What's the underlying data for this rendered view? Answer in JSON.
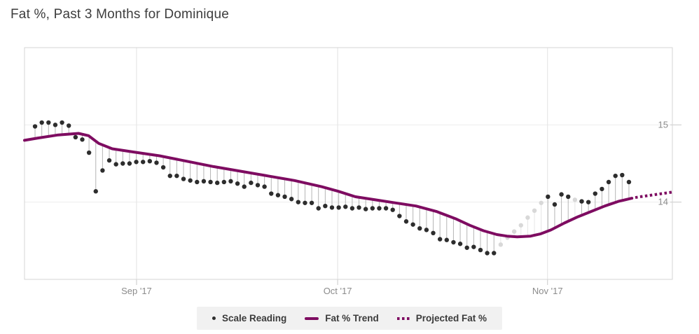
{
  "page": {
    "title": "Fat %, Past 3 Months for Dominique"
  },
  "legend": {
    "items": [
      {
        "label": "Scale Reading",
        "marker": "dot"
      },
      {
        "label": "Fat % Trend",
        "marker": "solid-line"
      },
      {
        "label": "Projected Fat %",
        "marker": "dotted-line"
      }
    ]
  },
  "colors": {
    "trend": "#7e0c61",
    "dot": "#2d2d2d",
    "stem": "#b5b5b5",
    "faded_dot": "#d8d8d8",
    "faded_stem": "#e6e6e6",
    "grid_v": "#e2e2e2",
    "grid_h": "#ededed",
    "border": "#d6d6d6",
    "tick": "#c9c9c9",
    "axis_label": "#8b8b8b",
    "title": "#3d3d3d",
    "legend_bg": "#f1f1f1",
    "legend_text": "#3b3b3b"
  },
  "chart_data": {
    "type": "line",
    "title": "Fat %, Past 3 Months for Dominique",
    "x_unit": "days",
    "x_domain": [
      0,
      96
    ],
    "y_domain": [
      13.0,
      16.0
    ],
    "grid": true,
    "legend_position": "bottom",
    "y_axis_side": "right",
    "y_ticks": [
      {
        "value": 15,
        "label": "15"
      },
      {
        "value": 14,
        "label": "14"
      }
    ],
    "x_ticks": [
      {
        "day": 16.6,
        "label": "Sep '17"
      },
      {
        "day": 46.4,
        "label": "Oct '17"
      },
      {
        "day": 77.5,
        "label": "Nov '17"
      }
    ],
    "series": {
      "scale_readings": {
        "name": "Scale Reading",
        "first_day": 1.56,
        "interval_days": 1,
        "values": [
          14.98,
          15.03,
          15.03,
          15.0,
          15.03,
          14.99,
          14.84,
          14.81,
          14.64,
          14.14,
          14.41,
          14.54,
          14.49,
          14.5,
          14.5,
          14.52,
          14.52,
          14.53,
          14.51,
          14.45,
          14.34,
          14.34,
          14.3,
          14.28,
          14.26,
          14.27,
          14.26,
          14.25,
          14.26,
          14.27,
          14.24,
          14.2,
          14.25,
          14.22,
          14.2,
          14.11,
          14.09,
          14.07,
          14.04,
          14.0,
          13.99,
          13.99,
          13.92,
          13.95,
          13.93,
          13.93,
          13.94,
          13.92,
          13.93,
          13.91,
          13.92,
          13.92,
          13.92,
          13.9,
          13.82,
          13.75,
          13.71,
          13.66,
          13.64,
          13.6,
          13.52,
          13.51,
          13.48,
          13.46,
          13.41,
          13.42,
          13.38,
          13.34,
          13.34,
          13.45,
          13.54,
          13.62,
          13.7,
          13.8,
          13.89,
          13.99,
          14.07,
          13.97,
          14.1,
          14.07,
          14.03,
          14.01,
          14.0,
          14.11,
          14.17,
          14.26,
          14.34,
          14.35,
          14.26
        ],
        "faded_indices": [
          69,
          70,
          71,
          72,
          73,
          74,
          75,
          80
        ]
      },
      "trend": {
        "name": "Fat % Trend",
        "points": [
          [
            0,
            14.8
          ],
          [
            2,
            14.83
          ],
          [
            5,
            14.87
          ],
          [
            8,
            14.89
          ],
          [
            9.5,
            14.86
          ],
          [
            11,
            14.76
          ],
          [
            13,
            14.69
          ],
          [
            16,
            14.65
          ],
          [
            20,
            14.6
          ],
          [
            24,
            14.53
          ],
          [
            28,
            14.46
          ],
          [
            32,
            14.4
          ],
          [
            36,
            14.34
          ],
          [
            40,
            14.28
          ],
          [
            44,
            14.2
          ],
          [
            46.5,
            14.14
          ],
          [
            49,
            14.07
          ],
          [
            52,
            14.03
          ],
          [
            55,
            13.99
          ],
          [
            58,
            13.95
          ],
          [
            61,
            13.88
          ],
          [
            64,
            13.78
          ],
          [
            66,
            13.7
          ],
          [
            68,
            13.63
          ],
          [
            70,
            13.58
          ],
          [
            71.5,
            13.56
          ],
          [
            73,
            13.55
          ],
          [
            75,
            13.56
          ],
          [
            76.5,
            13.59
          ],
          [
            78,
            13.64
          ],
          [
            80,
            13.73
          ],
          [
            82,
            13.81
          ],
          [
            84,
            13.88
          ],
          [
            86,
            13.95
          ],
          [
            88,
            14.01
          ],
          [
            90,
            14.05
          ]
        ]
      },
      "projection": {
        "name": "Projected Fat %",
        "points": [
          [
            90.5,
            14.06
          ],
          [
            96,
            14.13
          ]
        ]
      }
    }
  }
}
